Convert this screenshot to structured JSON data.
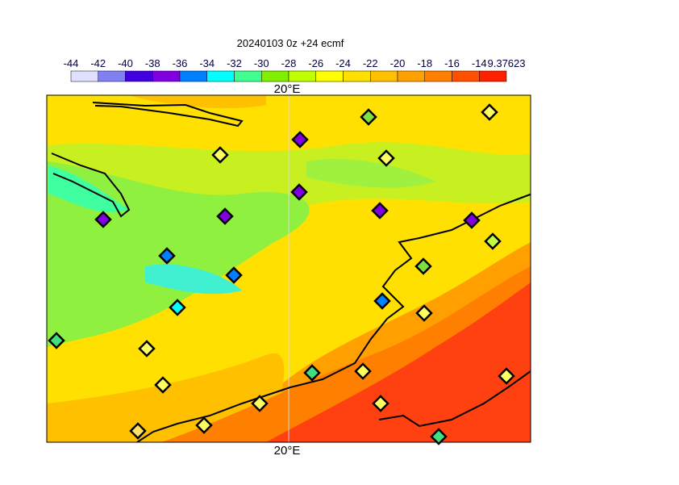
{
  "title": "20240103 0z +24 ecmf",
  "colorbar": {
    "labels": [
      "-44",
      "-42",
      "-40",
      "-38",
      "-36",
      "-34",
      "-32",
      "-30",
      "-28",
      "-26",
      "-24",
      "-22",
      "-20",
      "-18",
      "-16",
      "-14",
      "9.37623"
    ],
    "colors": [
      "#e0e0ff",
      "#8080f0",
      "#4000e0",
      "#8000e0",
      "#0080ff",
      "#00ffff",
      "#40ff90",
      "#80f000",
      "#c0ff00",
      "#ffff00",
      "#ffe000",
      "#ffc000",
      "#ffa000",
      "#ff8000",
      "#ff5000",
      "#ff2000"
    ]
  },
  "map": {
    "top_label": "20°E",
    "bottom_label": "20°E"
  }
}
